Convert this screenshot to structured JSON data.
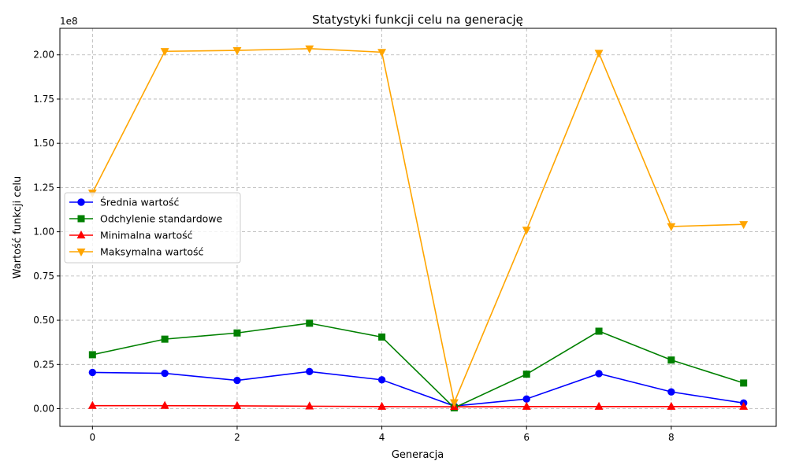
{
  "chart_data": {
    "type": "line",
    "title": "Statystyki funkcji celu na generację",
    "xlabel": "Generacja",
    "ylabel": "Wartość funkcji celu",
    "offset_text": "1e8",
    "x": [
      0,
      1,
      2,
      3,
      4,
      5,
      6,
      7,
      8,
      9
    ],
    "xlim": [
      -0.45,
      9.45
    ],
    "ylim": [
      -0.1,
      2.15
    ],
    "y_scale_multiplier": 100000000,
    "x_ticks": [
      0,
      2,
      4,
      6,
      8
    ],
    "x_tick_labels": [
      "0",
      "2",
      "4",
      "6",
      "8"
    ],
    "y_ticks": [
      0,
      0.25,
      0.5,
      0.75,
      1.0,
      1.25,
      1.5,
      1.75,
      2.0
    ],
    "y_tick_labels": [
      "0.00",
      "0.25",
      "0.50",
      "0.75",
      "1.00",
      "1.25",
      "1.50",
      "1.75",
      "2.00"
    ],
    "grid": true,
    "legend_position": "center-left",
    "series": [
      {
        "name": "Średnia wartość",
        "color": "#0000ff",
        "marker": "circle",
        "values": [
          0.205,
          0.2,
          0.16,
          0.21,
          0.163,
          0.015,
          0.055,
          0.198,
          0.095,
          0.032
        ]
      },
      {
        "name": "Odchylenie standardowe",
        "color": "#008000",
        "marker": "square",
        "values": [
          0.305,
          0.393,
          0.428,
          0.483,
          0.405,
          0.005,
          0.195,
          0.438,
          0.275,
          0.145
        ]
      },
      {
        "name": "Minimalna wartość",
        "color": "#ff0000",
        "marker": "triangle-up",
        "values": [
          0.017,
          0.017,
          0.016,
          0.014,
          0.012,
          0.011,
          0.012,
          0.012,
          0.012,
          0.012
        ]
      },
      {
        "name": "Maksymalna wartość",
        "color": "#ffa500",
        "marker": "triangle-down",
        "values": [
          1.22,
          2.02,
          2.025,
          2.035,
          2.015,
          0.035,
          1.01,
          2.01,
          1.03,
          1.042
        ]
      }
    ]
  }
}
